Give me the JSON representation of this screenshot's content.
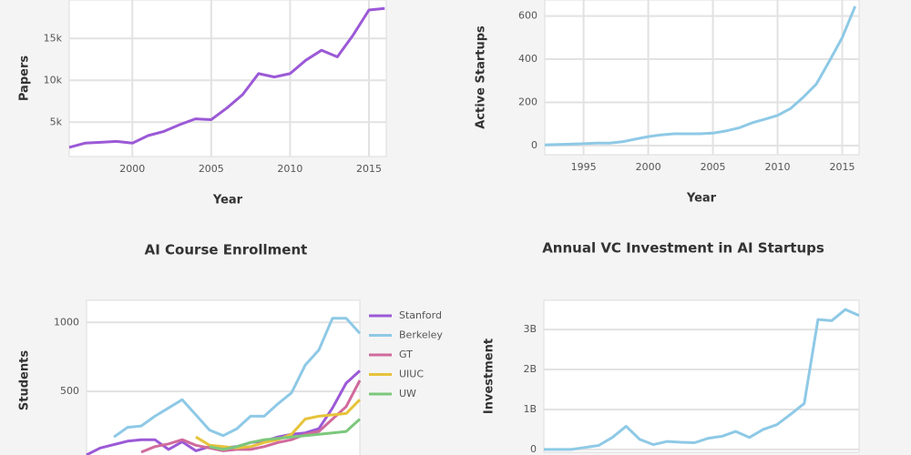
{
  "chart_data": [
    {
      "type": "line",
      "ylabel": "Papers",
      "xlabel": "Year",
      "x": [
        1996,
        1997,
        1998,
        1999,
        2000,
        2001,
        2002,
        2003,
        2004,
        2005,
        2006,
        2007,
        2008,
        2009,
        2010,
        2011,
        2012,
        2013,
        2014,
        2015,
        2016
      ],
      "values": [
        2000,
        2500,
        2600,
        2700,
        2500,
        3400,
        3900,
        4700,
        5400,
        5300,
        6700,
        8300,
        10800,
        10400,
        10800,
        12400,
        13600,
        12800,
        15400,
        18400,
        18600
      ],
      "color": "#9b59d6",
      "xlim": [
        1996,
        2016.1
      ],
      "xticks": [
        2000,
        2005,
        2010,
        2015
      ],
      "ylim": [
        900,
        19600
      ],
      "yticks": [
        {
          "value": 5000,
          "label": "5k"
        },
        {
          "value": 10000,
          "label": "10k"
        },
        {
          "value": 15000,
          "label": "15k"
        }
      ],
      "grid": true
    },
    {
      "type": "line",
      "ylabel": "Active Startups",
      "xlabel": "Year",
      "x": [
        1992,
        1993,
        1994,
        1995,
        1996,
        1997,
        1998,
        1999,
        2000,
        2001,
        2002,
        2003,
        2004,
        2005,
        2006,
        2007,
        2008,
        2009,
        2010,
        2011,
        2012,
        2013,
        2014,
        2015,
        2016
      ],
      "values": [
        3,
        5,
        7,
        9,
        12,
        12,
        18,
        30,
        42,
        50,
        55,
        55,
        55,
        58,
        68,
        82,
        105,
        122,
        140,
        172,
        225,
        285,
        390,
        500,
        645
      ],
      "color": "#8ec9e6",
      "xlim": [
        1992,
        2016.3
      ],
      "xticks": [
        1995,
        2000,
        2005,
        2010,
        2015
      ],
      "ylim": [
        -42,
        674
      ],
      "yticks": [
        0,
        200,
        400,
        600
      ],
      "grid": true
    },
    {
      "type": "line",
      "title": "AI Course Enrollment",
      "ylabel": "Students",
      "categories": [
        null,
        null,
        null,
        null,
        null,
        null,
        null,
        null,
        null,
        null,
        null,
        null,
        null,
        null,
        null,
        null,
        null,
        null,
        null,
        null,
        null
      ],
      "series": [
        {
          "name": "Stanford",
          "color": "#9b59d6",
          "values": [
            40,
            90,
            115,
            140,
            150,
            150,
            80,
            135,
            70,
            100,
            90,
            100,
            130,
            140,
            170,
            190,
            200,
            230,
            380,
            560,
            650
          ]
        },
        {
          "name": "Berkeley",
          "color": "#8ec9e6",
          "values": [
            null,
            null,
            170,
            240,
            250,
            320,
            380,
            440,
            330,
            220,
            180,
            230,
            320,
            320,
            410,
            490,
            690,
            800,
            1030,
            1030,
            920
          ]
        },
        {
          "name": "GT",
          "color": "#d06a9c",
          "values": [
            null,
            null,
            null,
            null,
            60,
            100,
            120,
            150,
            110,
            90,
            70,
            80,
            80,
            100,
            130,
            150,
            190,
            210,
            300,
            390,
            580
          ]
        },
        {
          "name": "UIUC",
          "color": "#e6c33a",
          "values": [
            null,
            null,
            null,
            null,
            null,
            null,
            null,
            null,
            170,
            110,
            100,
            90,
            100,
            130,
            150,
            190,
            300,
            320,
            330,
            340,
            440
          ]
        },
        {
          "name": "UW",
          "color": "#7cc77c",
          "values": [
            null,
            null,
            null,
            null,
            null,
            null,
            null,
            null,
            null,
            100,
            80,
            100,
            130,
            150,
            160,
            170,
            180,
            190,
            200,
            210,
            300
          ]
        }
      ],
      "legend": "right",
      "ylim": [
        0,
        1160
      ],
      "yticks": [
        500,
        1000
      ],
      "grid": true
    },
    {
      "type": "line",
      "title": "Annual VC Investment in AI Startups",
      "ylabel": "Investment",
      "categories": [
        null,
        null,
        null,
        null,
        null,
        null,
        null,
        null,
        null,
        null,
        null,
        null,
        null,
        null,
        null,
        null,
        null,
        null,
        null,
        null,
        null,
        null,
        null,
        null
      ],
      "values": [
        0,
        0,
        0,
        50000000,
        100000000,
        300000000,
        580000000,
        250000000,
        120000000,
        200000000,
        180000000,
        170000000,
        280000000,
        330000000,
        450000000,
        300000000,
        500000000,
        620000000,
        880000000,
        1150000000,
        3250000000,
        3220000000,
        3500000000,
        3350000000
      ],
      "color": "#8ec9e6",
      "ylim": [
        -70000000,
        3730000000
      ],
      "yticks": [
        0,
        {
          "value": 1000000000,
          "label": "1B"
        },
        {
          "value": 2000000000,
          "label": "2B"
        },
        {
          "value": 3000000000,
          "label": "3B"
        }
      ],
      "grid": true
    }
  ]
}
